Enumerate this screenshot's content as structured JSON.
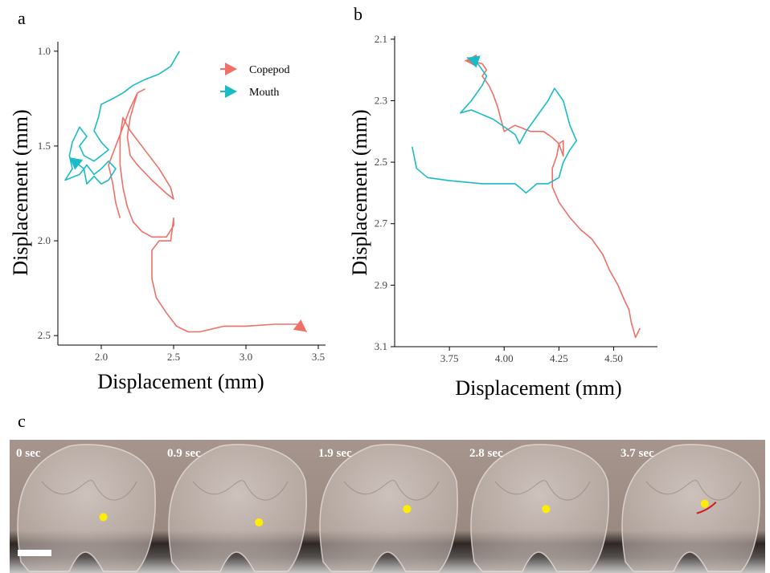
{
  "panel_labels": {
    "a": "a",
    "b": "b",
    "c": "c"
  },
  "colors": {
    "copepod": "#f07067",
    "mouth": "#19bcc6",
    "marker": "#ffee00",
    "trace": "#d11a1a"
  },
  "chart_data": [
    {
      "type": "line",
      "xlabel": "Displacement (mm)",
      "ylabel": "Displacement (mm)",
      "xlim": [
        1.7,
        3.55
      ],
      "ylim": [
        2.55,
        0.95
      ],
      "y_reversed": true,
      "xticks": [
        2.0,
        2.5,
        3.0,
        3.5
      ],
      "xtick_labels": [
        "2.0",
        "2.5",
        "3.0",
        "3.5"
      ],
      "yticks": [
        1.0,
        1.5,
        2.0,
        2.5
      ],
      "ytick_labels": [
        "1.0",
        "1.5",
        "2.0",
        "2.5"
      ],
      "grid": false,
      "legend": "top-right",
      "series": [
        {
          "name": "Copepod",
          "color": "#f07067",
          "x": [
            2.13,
            2.1,
            2.08,
            2.05,
            2.1,
            2.15,
            2.2,
            2.25,
            2.3,
            2.25,
            2.2,
            2.18,
            2.2,
            2.25,
            2.35,
            2.45,
            2.5,
            2.48,
            2.4,
            2.3,
            2.2,
            2.15,
            2.13,
            2.13,
            2.15,
            2.18,
            2.22,
            2.28,
            2.35,
            2.45,
            2.5,
            2.5,
            2.48,
            2.4,
            2.35,
            2.35,
            2.38,
            2.45,
            2.52,
            2.6,
            2.68,
            2.85,
            3.0,
            3.2,
            3.35,
            3.42
          ],
          "y": [
            1.88,
            1.8,
            1.7,
            1.6,
            1.5,
            1.4,
            1.3,
            1.22,
            1.2,
            1.22,
            1.35,
            1.45,
            1.55,
            1.6,
            1.68,
            1.75,
            1.78,
            1.72,
            1.62,
            1.52,
            1.42,
            1.35,
            1.45,
            1.6,
            1.72,
            1.82,
            1.9,
            1.95,
            1.98,
            1.98,
            1.92,
            1.88,
            2.0,
            2.0,
            2.05,
            2.2,
            2.3,
            2.38,
            2.45,
            2.48,
            2.48,
            2.45,
            2.45,
            2.44,
            2.44,
            2.48
          ]
        },
        {
          "name": "Mouth",
          "color": "#19bcc6",
          "x": [
            2.54,
            2.48,
            2.4,
            2.3,
            2.22,
            2.15,
            2.08,
            2.0,
            1.98,
            1.95,
            2.0,
            2.05,
            2.0,
            1.95,
            1.88,
            1.85,
            1.9,
            1.85,
            1.8,
            1.78,
            1.8,
            1.75,
            1.85,
            1.9,
            1.95,
            2.0,
            2.05,
            2.1,
            2.05,
            2.0,
            1.95,
            1.9,
            1.88,
            1.78
          ],
          "y": [
            1.0,
            1.08,
            1.12,
            1.15,
            1.18,
            1.22,
            1.25,
            1.28,
            1.35,
            1.42,
            1.48,
            1.52,
            1.55,
            1.58,
            1.55,
            1.5,
            1.45,
            1.4,
            1.48,
            1.55,
            1.62,
            1.68,
            1.65,
            1.6,
            1.65,
            1.62,
            1.58,
            1.62,
            1.68,
            1.7,
            1.66,
            1.7,
            1.62,
            1.56
          ]
        }
      ]
    },
    {
      "type": "line",
      "xlabel": "Displacement (mm)",
      "ylabel": "Displacement (mm)",
      "xlim": [
        3.5,
        4.7
      ],
      "ylim": [
        3.1,
        2.09
      ],
      "y_reversed": true,
      "xticks": [
        3.75,
        4.0,
        4.25,
        4.5
      ],
      "xtick_labels": [
        "3.75",
        "4.00",
        "4.25",
        "4.50"
      ],
      "yticks": [
        2.1,
        2.3,
        2.5,
        2.7,
        2.9,
        3.1
      ],
      "ytick_labels": [
        "2.1",
        "2.3",
        "2.5",
        "2.7",
        "2.9",
        "3.1"
      ],
      "grid": false,
      "series": [
        {
          "name": "Copepod",
          "color": "#f07067",
          "x": [
            4.62,
            4.6,
            4.58,
            4.57,
            4.55,
            4.52,
            4.48,
            4.45,
            4.4,
            4.35,
            4.3,
            4.25,
            4.22,
            4.22,
            4.24,
            4.25,
            4.27,
            4.27,
            4.25,
            4.22,
            4.18,
            4.12,
            4.05,
            4.0,
            3.97,
            3.95,
            3.93,
            3.9,
            3.92,
            3.9,
            3.85,
            3.82
          ],
          "y": [
            3.04,
            3.07,
            3.02,
            2.98,
            2.95,
            2.9,
            2.85,
            2.8,
            2.75,
            2.72,
            2.68,
            2.63,
            2.58,
            2.52,
            2.48,
            2.44,
            2.43,
            2.48,
            2.44,
            2.42,
            2.4,
            2.4,
            2.38,
            2.4,
            2.32,
            2.28,
            2.25,
            2.22,
            2.2,
            2.18,
            2.17,
            2.17
          ]
        },
        {
          "name": "Mouth",
          "color": "#19bcc6",
          "x": [
            3.58,
            3.6,
            3.65,
            3.75,
            3.9,
            4.05,
            4.1,
            4.15,
            4.2,
            4.25,
            4.27,
            4.3,
            4.33,
            4.3,
            4.27,
            4.23,
            4.2,
            4.15,
            4.1,
            4.07,
            4.05,
            3.95,
            3.85,
            3.8,
            3.85,
            3.9,
            3.92,
            3.9,
            3.87,
            3.83
          ],
          "y": [
            2.45,
            2.52,
            2.55,
            2.56,
            2.57,
            2.57,
            2.6,
            2.57,
            2.57,
            2.55,
            2.5,
            2.46,
            2.43,
            2.38,
            2.3,
            2.26,
            2.3,
            2.35,
            2.4,
            2.44,
            2.41,
            2.36,
            2.33,
            2.34,
            2.3,
            2.25,
            2.22,
            2.2,
            2.17,
            2.16
          ]
        }
      ]
    }
  ],
  "photo_strip": {
    "frames": [
      {
        "label": "0 sec",
        "dot_x": 0.62,
        "dot_y": 0.58
      },
      {
        "label": "0.9 sec",
        "dot_x": 0.65,
        "dot_y": 0.62
      },
      {
        "label": "1.9 sec",
        "dot_x": 0.63,
        "dot_y": 0.52
      },
      {
        "label": "2.8 sec",
        "dot_x": 0.55,
        "dot_y": 0.52
      },
      {
        "label": "3.7 sec",
        "dot_x": 0.6,
        "dot_y": 0.48
      }
    ]
  }
}
